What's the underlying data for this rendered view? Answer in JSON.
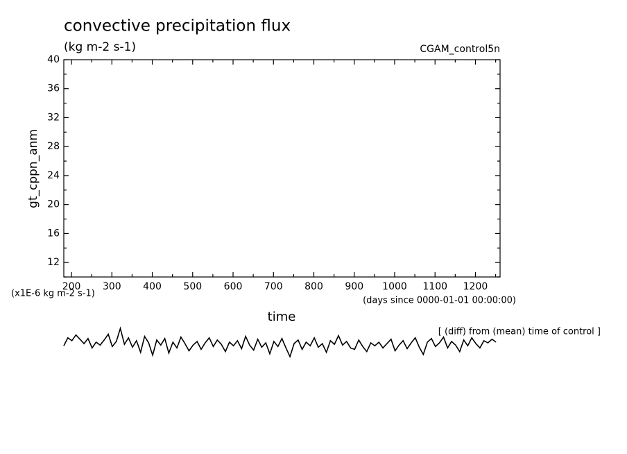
{
  "chart_data": {
    "type": "line",
    "title": "convective precipitation flux",
    "subtitle": "(kg m-2 s-1)",
    "experiment": "CGAM_control5n",
    "ylabel": "gt_cppn_anm",
    "yunits": "(x1E-6 kg m-2 s-1)",
    "xunits": "(days since 0000-01-01 00:00:00)",
    "xlabel": "time",
    "annotation": "[ (diff) from (mean) time of control ]",
    "xlim": [
      181,
      1261
    ],
    "ylim": [
      10,
      40
    ],
    "xticks": [
      200,
      300,
      400,
      500,
      600,
      700,
      800,
      900,
      1000,
      1100,
      1200
    ],
    "xminorticks": [
      250,
      350,
      450,
      550,
      650,
      750,
      850,
      950,
      1050,
      1150,
      1250
    ],
    "yticks": [
      12,
      16,
      20,
      24,
      28,
      32,
      36,
      40
    ],
    "yminorticks": [
      10,
      14,
      18,
      22,
      26,
      30,
      34,
      38
    ],
    "series": [
      {
        "color": "#000000",
        "x": [
          181,
          191,
          201,
          211,
          221,
          231,
          241,
          251,
          261,
          271,
          281,
          291,
          301,
          311,
          321,
          331,
          341,
          351,
          361,
          371,
          381,
          391,
          401,
          411,
          421,
          431,
          441,
          451,
          461,
          471,
          481,
          491,
          501,
          511,
          521,
          531,
          541,
          551,
          561,
          571,
          581,
          591,
          601,
          611,
          621,
          631,
          641,
          651,
          661,
          671,
          681,
          691,
          701,
          711,
          721,
          731,
          741,
          751,
          761,
          771,
          781,
          791,
          801,
          811,
          821,
          831,
          841,
          851,
          861,
          871,
          881,
          891,
          901,
          911,
          921,
          931,
          941,
          951,
          961,
          971,
          981,
          991,
          1001,
          1011,
          1021,
          1031,
          1041,
          1051,
          1061,
          1071,
          1081,
          1091,
          1101,
          1111,
          1121,
          1131,
          1141,
          1151,
          1161,
          1171,
          1181,
          1191,
          1201,
          1211,
          1221,
          1231,
          1241,
          1251
        ],
        "values": [
          0.5,
          1.6,
          1.2,
          2.0,
          1.4,
          0.8,
          1.5,
          0.2,
          1.0,
          0.6,
          1.3,
          2.1,
          0.4,
          1.1,
          2.9,
          0.7,
          1.6,
          0.3,
          1.2,
          -0.4,
          1.8,
          0.9,
          -0.8,
          1.3,
          0.6,
          1.5,
          -0.5,
          1.0,
          0.2,
          1.7,
          0.8,
          -0.2,
          0.6,
          1.1,
          0.0,
          0.9,
          1.6,
          0.4,
          1.3,
          0.7,
          -0.3,
          1.0,
          0.5,
          1.2,
          0.1,
          1.8,
          0.6,
          -0.1,
          1.4,
          0.3,
          0.9,
          -0.6,
          1.1,
          0.4,
          1.5,
          0.2,
          -1.0,
          0.8,
          1.3,
          0.0,
          1.0,
          0.5,
          1.6,
          0.3,
          0.8,
          -0.4,
          1.2,
          0.7,
          1.9,
          0.6,
          1.1,
          0.2,
          0.0,
          1.3,
          0.4,
          -0.3,
          0.9,
          0.5,
          1.0,
          0.2,
          0.8,
          1.4,
          -0.2,
          0.6,
          1.2,
          0.1,
          0.9,
          1.6,
          0.3,
          -0.7,
          1.0,
          1.5,
          0.4,
          0.9,
          1.7,
          0.2,
          1.1,
          0.6,
          -0.3,
          1.3,
          0.5,
          1.6,
          0.8,
          0.2,
          1.2,
          0.9,
          1.4,
          1.0
        ]
      }
    ]
  }
}
